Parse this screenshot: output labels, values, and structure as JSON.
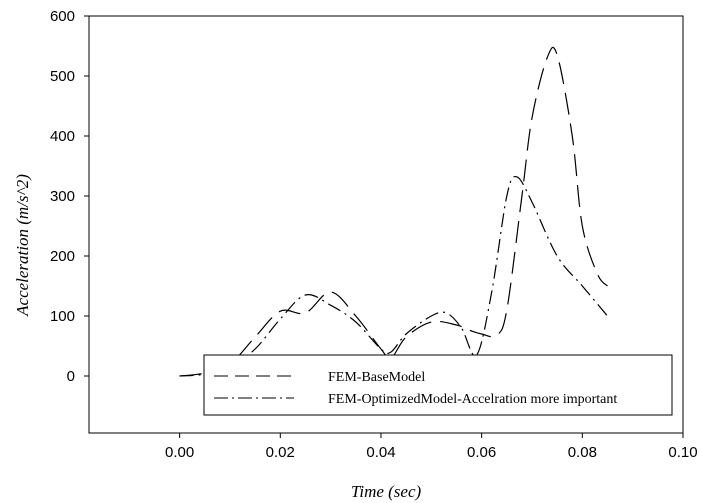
{
  "chart_data": {
    "type": "line",
    "title": "",
    "xlabel": "Time (sec)",
    "ylabel": "Acceleration (m/s^2)",
    "xlim": [
      -0.018,
      0.1
    ],
    "ylim": [
      -95,
      600
    ],
    "xticks": [
      0.0,
      0.02,
      0.04,
      0.06,
      0.08,
      0.1
    ],
    "xtick_labels": [
      "0.00",
      "0.02",
      "0.04",
      "0.06",
      "0.08",
      "0.10"
    ],
    "yticks": [
      0,
      100,
      200,
      300,
      400,
      500,
      600
    ],
    "ytick_labels": [
      "0",
      "100",
      "200",
      "300",
      "400",
      "500",
      "600"
    ],
    "grid": false,
    "legend_position": "bottom-right",
    "series": [
      {
        "name": "FEM-BaseModel",
        "style": "dashed",
        "color": "#000000",
        "x": [
          0.0,
          0.005,
          0.01,
          0.015,
          0.02,
          0.025,
          0.03,
          0.035,
          0.04,
          0.042,
          0.045,
          0.05,
          0.055,
          0.058,
          0.06,
          0.063,
          0.065,
          0.068,
          0.07,
          0.073,
          0.075,
          0.078,
          0.08,
          0.083,
          0.085
        ],
        "y": [
          0,
          5,
          20,
          65,
          108,
          105,
          140,
          100,
          45,
          30,
          65,
          90,
          85,
          75,
          70,
          68,
          110,
          300,
          430,
          530,
          535,
          400,
          250,
          170,
          150
        ]
      },
      {
        "name": "FEM-OptimizedModel-Accelration more important",
        "style": "dash-dot",
        "color": "#000000",
        "x": [
          0.0,
          0.005,
          0.01,
          0.015,
          0.02,
          0.025,
          0.03,
          0.035,
          0.04,
          0.042,
          0.045,
          0.05,
          0.053,
          0.056,
          0.059,
          0.062,
          0.065,
          0.067,
          0.07,
          0.075,
          0.08,
          0.085
        ],
        "y": [
          0,
          3,
          15,
          45,
          95,
          135,
          118,
          90,
          45,
          40,
          70,
          100,
          105,
          80,
          35,
          140,
          300,
          332,
          290,
          200,
          150,
          100
        ]
      }
    ]
  }
}
